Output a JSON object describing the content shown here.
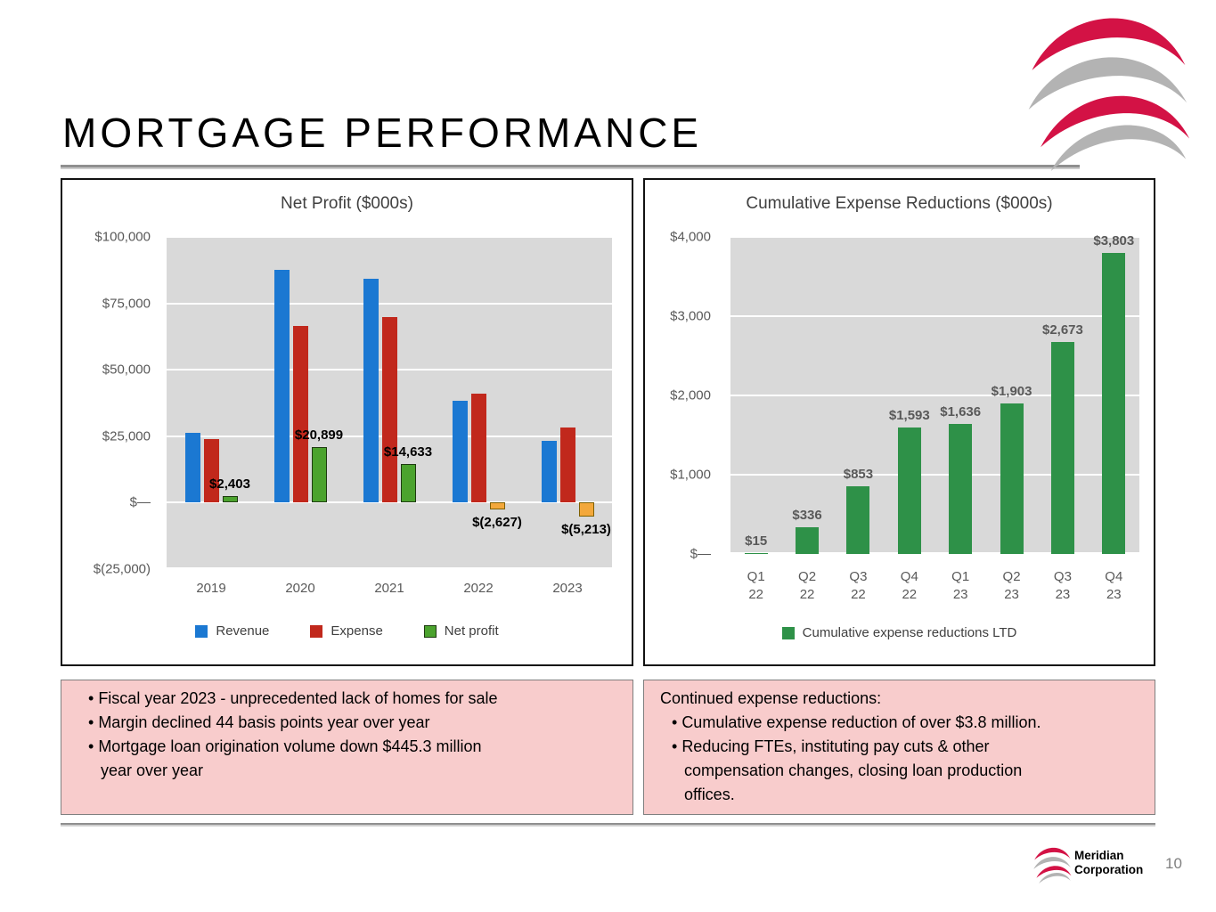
{
  "slide": {
    "title": "MORTGAGE PERFORMANCE",
    "page_number": "10",
    "footer_company_line1": "Meridian",
    "footer_company_line2": "Corporation",
    "logo_red": "#d31245",
    "logo_gray": "#b3b3b3"
  },
  "notes_left": {
    "bullets": [
      "Fiscal year 2023 -  unprecedented lack of homes for sale",
      "Margin declined 44 basis points year over year",
      "Mortgage loan origination volume down $445.3 million\nyear over year"
    ]
  },
  "notes_right": {
    "heading": "Continued expense reductions:",
    "bullets": [
      "Cumulative expense reduction of over $3.8 million.",
      "Reducing FTEs, instituting pay cuts & other\ncompensation changes, closing loan production\noffices."
    ]
  },
  "chart_data": [
    {
      "id": "net_profit",
      "type": "bar",
      "title": "Net Profit ($000s)",
      "categories": [
        "2019",
        "2020",
        "2021",
        "2022",
        "2023"
      ],
      "series": [
        {
          "name": "Revenue",
          "color": "#1b78d2",
          "values": [
            26200,
            87500,
            84400,
            38400,
            23100
          ]
        },
        {
          "name": "Expense",
          "color": "#c1281c",
          "values": [
            23800,
            66600,
            69800,
            41000,
            28300
          ]
        },
        {
          "name": "Net profit",
          "color": "#4ba32e",
          "border": "#1d3a10",
          "negative_color": "#f3a83b",
          "negative_border": "#7f6000",
          "values": [
            2403,
            20899,
            14633,
            -2627,
            -5213
          ],
          "labels": [
            "$2,403",
            "$20,899",
            "$14,633",
            "$(2,627)",
            "$(5,213)"
          ],
          "label_color": "#000000"
        }
      ],
      "ylim": [
        -25000,
        100000
      ],
      "yticks": [
        {
          "value": 100000,
          "label": "$100,000"
        },
        {
          "value": 75000,
          "label": "$75,000"
        },
        {
          "value": 50000,
          "label": "$50,000"
        },
        {
          "value": 25000,
          "label": "$25,000"
        },
        {
          "value": 0,
          "label": "$—"
        },
        {
          "value": -25000,
          "label": "$(25,000)"
        }
      ],
      "grid": true,
      "legend_position": "bottom",
      "legend": [
        {
          "label": "Revenue",
          "color": "#1b78d2"
        },
        {
          "label": "Expense",
          "color": "#c1281c"
        },
        {
          "label": "Net profit",
          "color": "#4ba32e",
          "border": "#1d3a10"
        }
      ]
    },
    {
      "id": "cumulative_expense_reductions",
      "type": "bar",
      "title": "Cumulative Expense Reductions ($000s)",
      "categories": [
        "Q1 22",
        "Q2 22",
        "Q3 22",
        "Q4 22",
        "Q1 23",
        "Q2 23",
        "Q3 23",
        "Q4 23"
      ],
      "series": [
        {
          "name": "Cumulative expense reductions LTD",
          "color": "#2e9148",
          "values": [
            15,
            336,
            853,
            1593,
            1636,
            1903,
            2673,
            3803
          ],
          "labels": [
            "$15",
            "$336",
            "$853",
            "$1,593",
            "$1,636",
            "$1,903",
            "$2,673",
            "$3,803"
          ],
          "label_color": "#595959"
        }
      ],
      "ylim": [
        0,
        4000
      ],
      "yticks": [
        {
          "value": 4000,
          "label": "$4,000"
        },
        {
          "value": 3000,
          "label": "$3,000"
        },
        {
          "value": 2000,
          "label": "$2,000"
        },
        {
          "value": 1000,
          "label": "$1,000"
        },
        {
          "value": 0,
          "label": "$—"
        }
      ],
      "grid": true,
      "legend_position": "bottom",
      "legend": [
        {
          "label": "Cumulative expense reductions LTD",
          "color": "#2e9148"
        }
      ]
    }
  ]
}
